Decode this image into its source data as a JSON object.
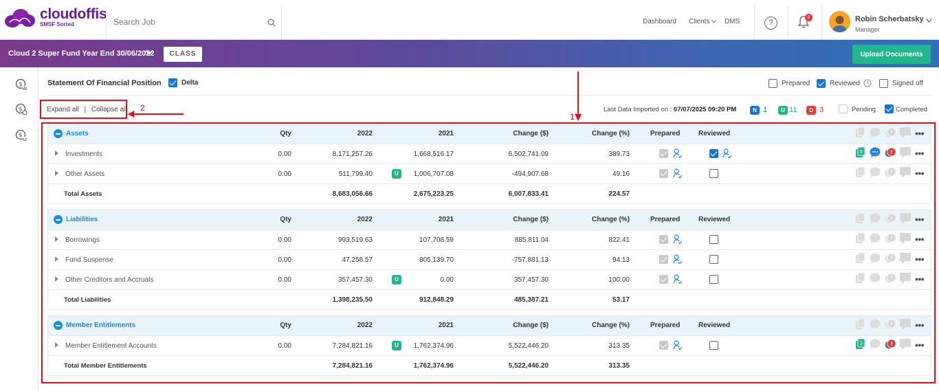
{
  "header": {
    "logo_name": "cloudoffis",
    "logo_tagline": "SMSF Sorted",
    "search_placeholder": "Search Job",
    "nav": {
      "dashboard": "Dashboard",
      "clients": "Clients",
      "dms": "DMS"
    },
    "help_symbol": "?",
    "notifications_count": "6",
    "user_name": "Robin Scherbatsky",
    "user_role": "Manager"
  },
  "banner": {
    "fund_title": "Cloud 2 Super Fund Year End 30/06/2022",
    "integration_logo": "CLASS",
    "upload_label": "Upload Documents"
  },
  "toolbar": {
    "page_title": "Statement Of Financial Position",
    "delta_label": "Delta",
    "delta_checked": true,
    "prepared_label": "Prepared",
    "prepared_checked": false,
    "reviewed_label": "Reviewed",
    "reviewed_checked": true,
    "signed_off_label": "Signed off",
    "signed_off_checked": false,
    "expand_all": "Expand all",
    "separator": "|",
    "collapse_all": "Collapse all",
    "last_import_label": "Last Data Imported on :",
    "last_import_value": "07/07/2025 09:20 PM",
    "badge_n": "N",
    "count_n": "1",
    "badge_u": "U",
    "count_u": "11",
    "badge_d": "D",
    "count_d": "3",
    "pending_label": "Pending",
    "pending_checked": false,
    "completed_label": "Completed",
    "completed_checked": true
  },
  "annotations": {
    "marker_1": "1",
    "marker_2": "2"
  },
  "columns": {
    "qty": "Qty",
    "y2022": "2022",
    "y2021": "2021",
    "change_amt": "Change ($)",
    "change_pct": "Change (%)",
    "prepared": "Prepared",
    "reviewed": "Reviewed"
  },
  "sections": [
    {
      "name": "Assets",
      "rows": [
        {
          "label": "Investments",
          "qty": "0.00",
          "y2022": "8,171,257.26",
          "y2021": "1,668,516.17",
          "change_amt": "6,502,741.09",
          "change_pct": "389.73",
          "u_badge": "",
          "prepared": true,
          "reviewed": true,
          "doc_count": "5"
        },
        {
          "label": "Other Assets",
          "qty": "0.00",
          "y2022": "511,799.40",
          "y2021": "1,006,707.08",
          "change_amt": "-494,907.68",
          "change_pct": "49.16",
          "u_badge": "U",
          "prepared": true,
          "reviewed": false,
          "doc_count": ""
        }
      ],
      "total": {
        "label": "Total Assets",
        "y2022": "8,683,056.66",
        "y2021": "2,675,223.25",
        "change_amt": "6,007,833.41",
        "change_pct": "224.57"
      }
    },
    {
      "name": "Liabilities",
      "rows": [
        {
          "label": "Borrowings",
          "qty": "0.00",
          "y2022": "993,519.63",
          "y2021": "107,708.59",
          "change_amt": "885,811.04",
          "change_pct": "822.41",
          "u_badge": "",
          "prepared": true,
          "reviewed": false,
          "doc_count": ""
        },
        {
          "label": "Fund Suspense",
          "qty": "0.00",
          "y2022": "47,258.57",
          "y2021": "805,139.70",
          "change_amt": "-757,881.13",
          "change_pct": "94.13",
          "u_badge": "",
          "prepared": true,
          "reviewed": false,
          "doc_count": ""
        },
        {
          "label": "Other Creditors and Accruals",
          "qty": "0.00",
          "y2022": "357,457.30",
          "y2021": "0.00",
          "change_amt": "357,457.30",
          "change_pct": "100.00",
          "u_badge": "U",
          "prepared": true,
          "reviewed": false,
          "doc_count": ""
        }
      ],
      "total": {
        "label": "Total Liabilities",
        "y2022": "1,398,235.50",
        "y2021": "912,848.29",
        "change_amt": "485,387.21",
        "change_pct": "53.17"
      }
    },
    {
      "name": "Member Entitlements",
      "rows": [
        {
          "label": "Member Entitlement Accounts",
          "qty": "0.00",
          "y2022": "7,284,821.16",
          "y2021": "1,762,374.96",
          "change_amt": "5,522,446.20",
          "change_pct": "313.35",
          "u_badge": "U",
          "prepared": true,
          "reviewed": false,
          "doc_count": "2"
        }
      ],
      "total": {
        "label": "Total Member Entitlements",
        "y2022": "7,284,821.16",
        "y2021": "1,762,374.96",
        "change_amt": "5,522,446.20",
        "change_pct": "313.35"
      }
    }
  ],
  "colors": {
    "accent": "#1e88e5",
    "brand": "#6a1b9a",
    "upload_green": "#22b68a",
    "annotation_red": "#e0111b"
  }
}
